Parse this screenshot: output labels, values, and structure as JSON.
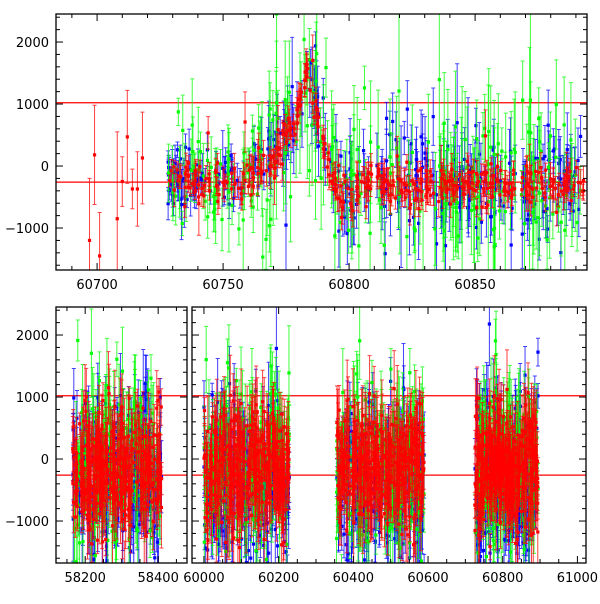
{
  "chart_data": [
    {
      "type": "scatter",
      "panel": "top",
      "title": "",
      "xlabel": "",
      "ylabel": "",
      "xlim": [
        60683.7,
        60894.4
      ],
      "ylim": [
        -1677,
        2452
      ],
      "xticks": [
        "60700",
        "60750",
        "60800",
        "60850"
      ],
      "xtick_values": [
        60700,
        60750,
        60800,
        60850
      ],
      "yticks": [
        "2000",
        "1000",
        "0",
        "−1000"
      ],
      "ytick_values": [
        2000,
        1000,
        0,
        -1000
      ],
      "hlines": [
        1020,
        -260
      ],
      "hline_color": "#ff0000",
      "sparse_red_points": [
        [
          60697,
          -1200,
          1000
        ],
        [
          60699,
          180,
          800
        ],
        [
          60701,
          -1450,
          700
        ],
        [
          60708,
          -850,
          1400
        ],
        [
          60710,
          -250,
          400
        ],
        [
          60712,
          470,
          750
        ],
        [
          60714,
          -370,
          320
        ],
        [
          60716,
          -370,
          600
        ],
        [
          60718,
          130,
          740
        ]
      ],
      "trend_knots": [
        [
          60728,
          -150
        ],
        [
          60750,
          -300
        ],
        [
          60760,
          -200
        ],
        [
          60770,
          100
        ],
        [
          60778,
          600
        ],
        [
          60783,
          1500
        ],
        [
          60787,
          800
        ],
        [
          60792,
          0
        ],
        [
          60797,
          -500
        ],
        [
          60805,
          -300
        ],
        [
          60893,
          -300
        ]
      ],
      "dense_range": [
        60728,
        60893
      ],
      "gaps": [
        [
          60809,
          60811
        ],
        [
          60866,
          60868
        ]
      ],
      "series": [
        {
          "name": "blue",
          "color": "#0000ff",
          "scatter": 230,
          "error": 220,
          "n": 320
        },
        {
          "name": "green",
          "color": "#00ff00",
          "scatter": 330,
          "error": 380,
          "n": 260
        },
        {
          "name": "red",
          "color": "#ff0000",
          "scatter": 160,
          "error": 180,
          "n": 420
        }
      ]
    },
    {
      "type": "scatter",
      "panel": "bottom",
      "title": "",
      "xlabel": "",
      "ylabel": "",
      "ylim": [
        -1677,
        2452
      ],
      "yticks": [
        "2000",
        "1000",
        "0",
        "−1000"
      ],
      "ytick_values": [
        2000,
        1000,
        0,
        -1000
      ],
      "hlines": [
        1020,
        -260
      ],
      "hline_color": "#ff0000",
      "subpanels": [
        {
          "xlim": [
            58120,
            58479
          ],
          "xticks": [
            "58200",
            "58400"
          ],
          "xtick_values": [
            58200,
            58400
          ]
        },
        {
          "xlim": [
            59968,
            61023
          ],
          "xticks": [
            "60000",
            "60200",
            "60400",
            "60600",
            "60800",
            "61000"
          ],
          "xtick_values": [
            60000,
            60200,
            60400,
            60600,
            60800,
            61000
          ]
        }
      ],
      "segments": [
        [
          58165,
          58410,
          0
        ],
        [
          60000,
          60230,
          1
        ],
        [
          60355,
          60590,
          1
        ],
        [
          60725,
          60895,
          1
        ]
      ],
      "center": -150,
      "series": [
        {
          "name": "blue",
          "color": "#0000ff",
          "scatter": 650,
          "bias": -150,
          "error": 450,
          "n": 230
        },
        {
          "name": "green",
          "color": "#00ff00",
          "scatter": 620,
          "bias": 50,
          "error": 500,
          "n": 200
        },
        {
          "name": "red",
          "color": "#ff0000",
          "scatter": 480,
          "bias": 0,
          "error": 420,
          "n": 320
        }
      ]
    }
  ]
}
